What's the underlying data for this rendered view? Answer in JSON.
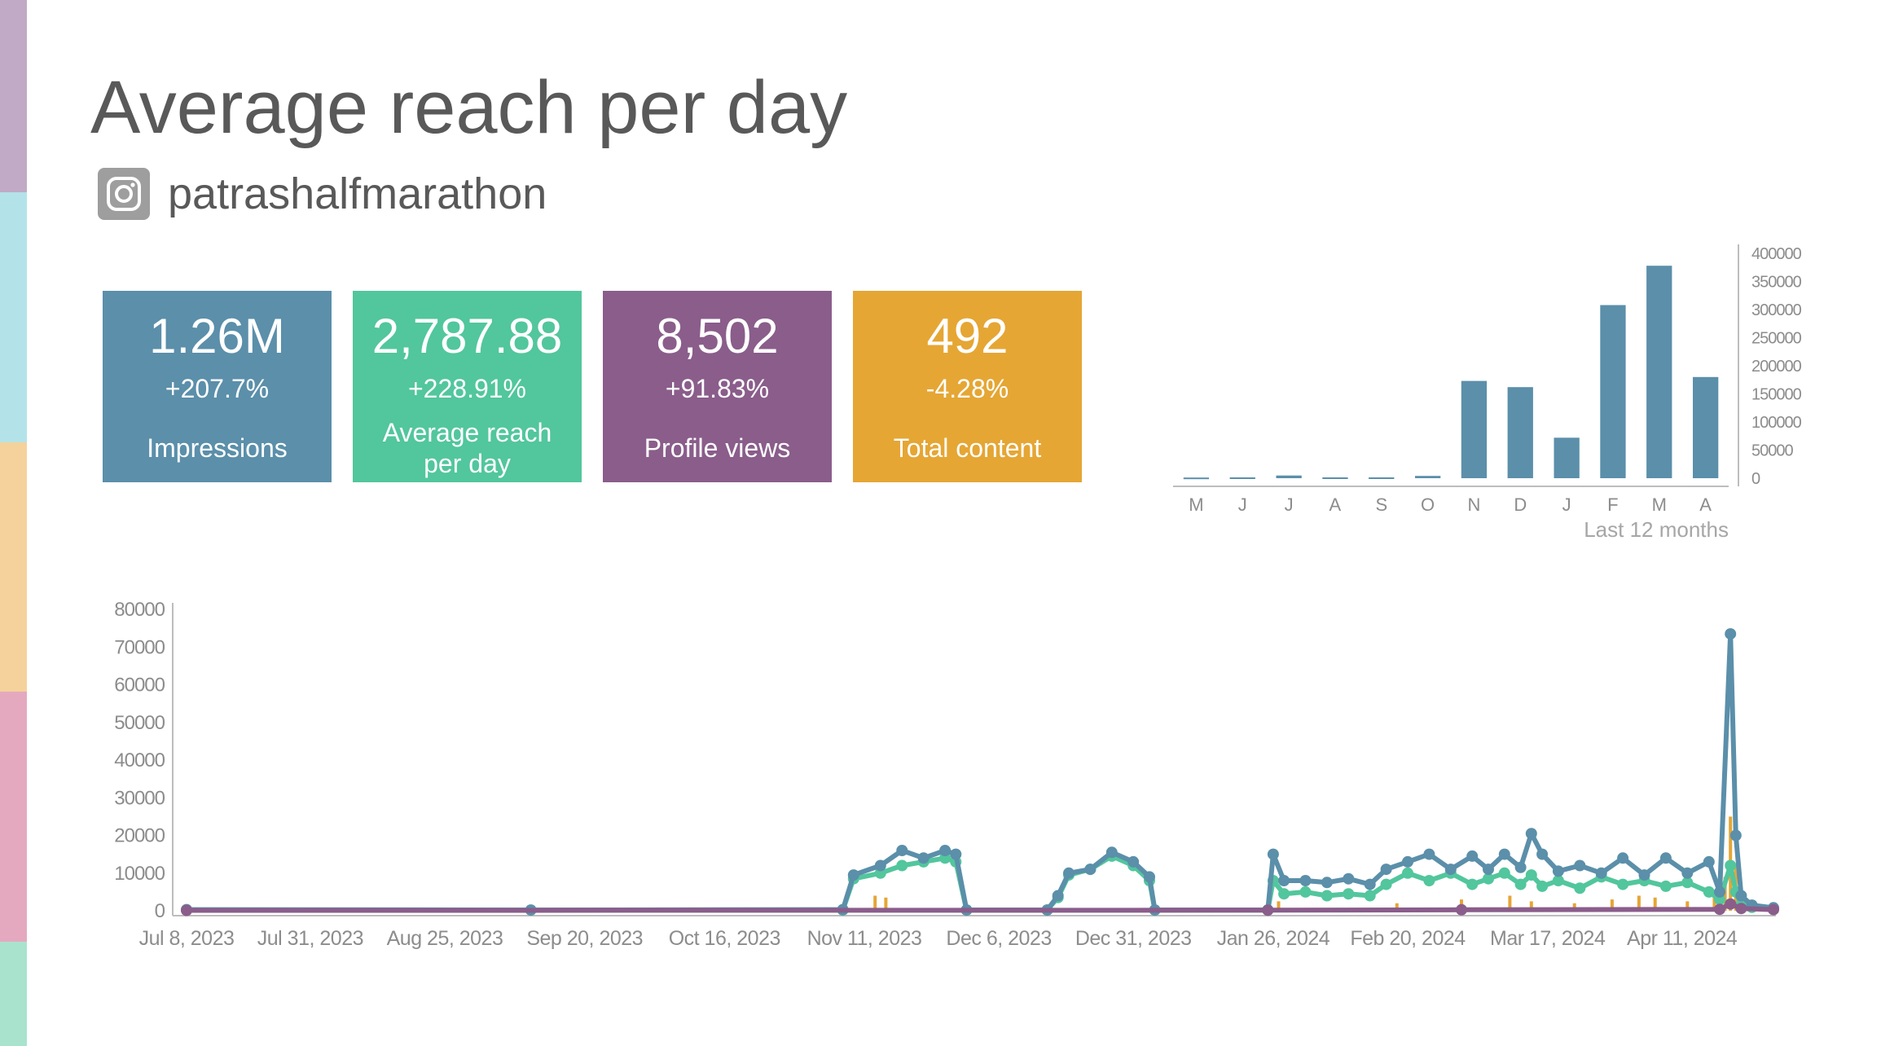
{
  "page": {
    "title": "Average reach per day"
  },
  "account": {
    "platform_icon": "instagram-icon",
    "name": "patrashalfmarathon"
  },
  "sidebar_colors": [
    "#c0aac6",
    "#b3e3e9",
    "#f5d29b",
    "#e4a9bf",
    "#a9e3cd"
  ],
  "kpis": [
    {
      "value": "1.26M",
      "change": "+207.7%",
      "label": "Impressions",
      "color": "#5b8faa"
    },
    {
      "value": "2,787.88",
      "change": "+228.91%",
      "label": "Average reach per day",
      "color": "#52c69d"
    },
    {
      "value": "8,502",
      "change": "+91.83%",
      "label": "Profile views",
      "color": "#8a5d8b"
    },
    {
      "value": "492",
      "change": "-4.28%",
      "label": "Total content",
      "color": "#e5a634"
    }
  ],
  "chart_data": [
    {
      "type": "bar",
      "title": "",
      "xlabel": "Last 12 months",
      "ylabel": "",
      "categories": [
        "M",
        "J",
        "J",
        "A",
        "S",
        "O",
        "N",
        "D",
        "J",
        "F",
        "M",
        "A"
      ],
      "values": [
        1200,
        1500,
        4800,
        1500,
        1500,
        4000,
        173000,
        162000,
        72000,
        308000,
        378000,
        180000
      ],
      "ylim": [
        0,
        400000
      ],
      "yticks": [
        "400000",
        "350000",
        "300000",
        "250000",
        "200000",
        "150000",
        "100000",
        "50000",
        "0"
      ],
      "color": "#5b8faa",
      "legend": "none"
    },
    {
      "type": "line",
      "title": "",
      "xlabel": "",
      "ylabel": "",
      "x_range": [
        "2023-07-08",
        "2024-04-28"
      ],
      "ylim": [
        0,
        80000
      ],
      "yticks": [
        "80000",
        "70000",
        "60000",
        "50000",
        "40000",
        "30000",
        "20000",
        "10000",
        "0"
      ],
      "xticks": [
        {
          "label": "Jul 8, 2023",
          "date": "2023-07-08"
        },
        {
          "label": "Jul 31, 2023",
          "date": "2023-07-31"
        },
        {
          "label": "Aug 25, 2023",
          "date": "2023-08-25"
        },
        {
          "label": "Sep 20, 2023",
          "date": "2023-09-20"
        },
        {
          "label": "Oct 16, 2023",
          "date": "2023-10-16"
        },
        {
          "label": "Nov 11, 2023",
          "date": "2023-11-11"
        },
        {
          "label": "Dec 6, 2023",
          "date": "2023-12-06"
        },
        {
          "label": "Dec 31, 2023",
          "date": "2023-12-31"
        },
        {
          "label": "Jan 26, 2024",
          "date": "2024-01-26"
        },
        {
          "label": "Feb 20, 2024",
          "date": "2024-02-20"
        },
        {
          "label": "Mar 17, 2024",
          "date": "2024-03-17"
        },
        {
          "label": "Apr 11, 2024",
          "date": "2024-04-11"
        }
      ],
      "legend": "none",
      "series": [
        {
          "name": "Impressions",
          "kind": "line",
          "color": "#5b8faa",
          "points": [
            [
              "2023-07-08",
              300
            ],
            [
              "2023-09-10",
              200
            ],
            [
              "2023-11-07",
              300
            ],
            [
              "2023-11-09",
              9500
            ],
            [
              "2023-11-14",
              12000
            ],
            [
              "2023-11-18",
              16000
            ],
            [
              "2023-11-22",
              14000
            ],
            [
              "2023-11-26",
              16000
            ],
            [
              "2023-11-28",
              15000
            ],
            [
              "2023-11-30",
              200
            ],
            [
              "2023-12-15",
              200
            ],
            [
              "2023-12-17",
              4000
            ],
            [
              "2023-12-19",
              10000
            ],
            [
              "2023-12-23",
              11000
            ],
            [
              "2023-12-27",
              15500
            ],
            [
              "2023-12-31",
              13000
            ],
            [
              "2024-01-03",
              9000
            ],
            [
              "2024-01-04",
              200
            ],
            [
              "2024-01-25",
              200
            ],
            [
              "2024-01-26",
              15000
            ],
            [
              "2024-01-28",
              8000
            ],
            [
              "2024-02-01",
              8000
            ],
            [
              "2024-02-05",
              7500
            ],
            [
              "2024-02-09",
              8500
            ],
            [
              "2024-02-13",
              7000
            ],
            [
              "2024-02-16",
              11000
            ],
            [
              "2024-02-20",
              13000
            ],
            [
              "2024-02-24",
              15000
            ],
            [
              "2024-02-28",
              11000
            ],
            [
              "2024-03-03",
              14500
            ],
            [
              "2024-03-06",
              11000
            ],
            [
              "2024-03-09",
              15000
            ],
            [
              "2024-03-12",
              11500
            ],
            [
              "2024-03-14",
              20500
            ],
            [
              "2024-03-16",
              15000
            ],
            [
              "2024-03-19",
              10500
            ],
            [
              "2024-03-23",
              12000
            ],
            [
              "2024-03-27",
              10000
            ],
            [
              "2024-03-31",
              14000
            ],
            [
              "2024-04-04",
              9500
            ],
            [
              "2024-04-08",
              14000
            ],
            [
              "2024-04-12",
              10000
            ],
            [
              "2024-04-16",
              13000
            ],
            [
              "2024-04-18",
              5000
            ],
            [
              "2024-04-20",
              73500
            ],
            [
              "2024-04-21",
              20000
            ],
            [
              "2024-04-22",
              4000
            ],
            [
              "2024-04-24",
              1500
            ],
            [
              "2024-04-28",
              800
            ]
          ]
        },
        {
          "name": "Average reach per day",
          "kind": "line",
          "color": "#52c69d",
          "points": [
            [
              "2023-07-08",
              200
            ],
            [
              "2023-11-07",
              200
            ],
            [
              "2023-11-09",
              8500
            ],
            [
              "2023-11-14",
              10000
            ],
            [
              "2023-11-18",
              12000
            ],
            [
              "2023-11-22",
              13000
            ],
            [
              "2023-11-26",
              14000
            ],
            [
              "2023-11-28",
              13000
            ],
            [
              "2023-11-30",
              200
            ],
            [
              "2023-12-15",
              200
            ],
            [
              "2023-12-17",
              3500
            ],
            [
              "2023-12-19",
              9500
            ],
            [
              "2023-12-23",
              11000
            ],
            [
              "2023-12-27",
              14500
            ],
            [
              "2023-12-31",
              12000
            ],
            [
              "2024-01-03",
              8000
            ],
            [
              "2024-01-04",
              200
            ],
            [
              "2024-01-25",
              200
            ],
            [
              "2024-01-26",
              8000
            ],
            [
              "2024-01-28",
              4500
            ],
            [
              "2024-02-01",
              5000
            ],
            [
              "2024-02-05",
              4000
            ],
            [
              "2024-02-09",
              4500
            ],
            [
              "2024-02-13",
              4000
            ],
            [
              "2024-02-16",
              7000
            ],
            [
              "2024-02-20",
              10000
            ],
            [
              "2024-02-24",
              8000
            ],
            [
              "2024-02-28",
              10000
            ],
            [
              "2024-03-03",
              7000
            ],
            [
              "2024-03-06",
              8500
            ],
            [
              "2024-03-09",
              10000
            ],
            [
              "2024-03-12",
              7000
            ],
            [
              "2024-03-14",
              9500
            ],
            [
              "2024-03-16",
              6500
            ],
            [
              "2024-03-19",
              8000
            ],
            [
              "2024-03-23",
              6000
            ],
            [
              "2024-03-27",
              9000
            ],
            [
              "2024-03-31",
              7000
            ],
            [
              "2024-04-04",
              8000
            ],
            [
              "2024-04-08",
              6500
            ],
            [
              "2024-04-12",
              7500
            ],
            [
              "2024-04-16",
              5000
            ],
            [
              "2024-04-18",
              3000
            ],
            [
              "2024-04-20",
              12000
            ],
            [
              "2024-04-21",
              5000
            ],
            [
              "2024-04-22",
              1500
            ],
            [
              "2024-04-24",
              900
            ],
            [
              "2024-04-28",
              500
            ]
          ]
        },
        {
          "name": "Profile views",
          "kind": "line",
          "color": "#8a5d8b",
          "points": [
            [
              "2023-07-08",
              100
            ],
            [
              "2024-01-25",
              150
            ],
            [
              "2024-03-01",
              250
            ],
            [
              "2024-04-18",
              400
            ],
            [
              "2024-04-20",
              1800
            ],
            [
              "2024-04-22",
              600
            ],
            [
              "2024-04-28",
              300
            ]
          ]
        },
        {
          "name": "Total content",
          "kind": "bar",
          "color": "#e5a634",
          "points": [
            [
              "2023-11-13",
              4000
            ],
            [
              "2023-11-15",
              3500
            ],
            [
              "2024-01-27",
              2500
            ],
            [
              "2024-02-18",
              2000
            ],
            [
              "2024-03-01",
              3000
            ],
            [
              "2024-03-10",
              4000
            ],
            [
              "2024-03-14",
              2500
            ],
            [
              "2024-03-22",
              2000
            ],
            [
              "2024-03-29",
              3000
            ],
            [
              "2024-04-03",
              4000
            ],
            [
              "2024-04-06",
              3500
            ],
            [
              "2024-04-12",
              2500
            ],
            [
              "2024-04-17",
              4000
            ],
            [
              "2024-04-19",
              9000
            ],
            [
              "2024-04-20",
              25000
            ],
            [
              "2024-04-21",
              12000
            ],
            [
              "2024-04-23",
              2000
            ]
          ]
        }
      ]
    }
  ]
}
